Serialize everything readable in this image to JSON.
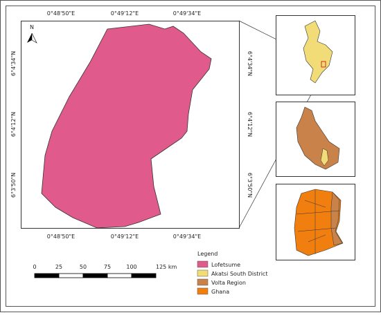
{
  "map": {
    "north_label": "N",
    "top_labels": [
      "0°48'50\"E",
      "0°49'12\"E",
      "0°49'34\"E"
    ],
    "bottom_labels": [
      "0°48'50\"E",
      "0°49'12\"E",
      "0°49'34\"E"
    ],
    "left_labels": [
      "6°4'34\"N",
      "6°4'12\"N",
      "6°3'50\"N"
    ],
    "right_labels": [
      "6°4'34\"N",
      "6°4'12\"N",
      "6°3'50\"N"
    ],
    "scale_labels": [
      "0",
      "25",
      "50",
      "75",
      "100",
      "125 km"
    ],
    "legend": {
      "title": "Legend",
      "items": [
        {
          "label": "Lofetsume",
          "color": "#e05a8c"
        },
        {
          "label": "Akatsi South District",
          "color": "#f2dc78"
        },
        {
          "label": "Volta Region",
          "color": "#c8824a"
        },
        {
          "label": "Ghana",
          "color": "#f07f10"
        }
      ]
    }
  }
}
